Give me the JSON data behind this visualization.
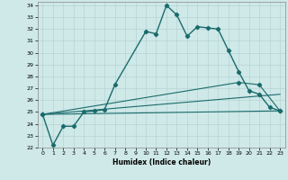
{
  "xlabel": "Humidex (Indice chaleur)",
  "xlim": [
    -0.5,
    23.5
  ],
  "ylim": [
    22,
    34.3
  ],
  "yticks": [
    22,
    23,
    24,
    25,
    26,
    27,
    28,
    29,
    30,
    31,
    32,
    33,
    34
  ],
  "xticks": [
    0,
    1,
    2,
    3,
    4,
    5,
    6,
    7,
    8,
    9,
    10,
    11,
    12,
    13,
    14,
    15,
    16,
    17,
    18,
    19,
    20,
    21,
    22,
    23
  ],
  "bg_color": "#cfe8e8",
  "grid_color": "#b0d0d0",
  "line_color": "#1a6b6b",
  "line1_x": [
    0,
    1,
    2,
    3,
    4,
    5,
    6,
    7,
    10,
    11,
    12,
    13,
    14,
    15,
    16,
    17,
    18,
    19,
    20,
    21,
    22,
    23
  ],
  "line1_y": [
    24.8,
    22.2,
    23.8,
    23.8,
    25.0,
    25.1,
    25.2,
    27.3,
    31.8,
    31.6,
    34.0,
    33.2,
    31.4,
    32.2,
    32.1,
    32.0,
    30.2,
    28.4,
    26.8,
    26.5,
    25.4,
    25.1
  ],
  "line2_x": [
    0,
    23
  ],
  "line2_y": [
    24.8,
    25.1
  ],
  "line3_x": [
    0,
    23
  ],
  "line3_y": [
    24.8,
    26.5
  ],
  "line4_x": [
    0,
    19,
    21,
    23
  ],
  "line4_y": [
    24.8,
    27.5,
    27.3,
    25.1
  ]
}
